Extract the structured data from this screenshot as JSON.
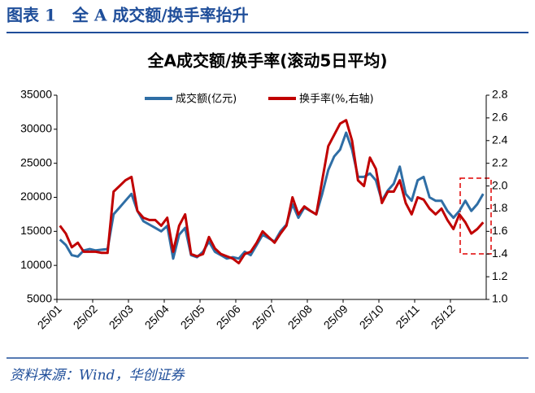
{
  "header": {
    "title": "图表 1　全 A 成交额/换手率抬升"
  },
  "source": "资料来源：Wind，华创证券",
  "chart_data": {
    "type": "line",
    "title": "全A成交额/换手率(滚动5日平均)",
    "categories": [
      "25/01",
      null,
      null,
      null,
      null,
      null,
      "25/02",
      null,
      null,
      null,
      null,
      null,
      "25/03",
      null,
      null,
      null,
      null,
      null,
      "25/04",
      null,
      null,
      null,
      null,
      null,
      "25/05",
      null,
      null,
      null,
      null,
      null,
      "25/06",
      null,
      null,
      null,
      null,
      null,
      "25/07",
      null,
      null,
      null,
      null,
      null,
      "25/08",
      null,
      null,
      null,
      null,
      null,
      "25/09",
      null,
      null,
      null,
      null,
      null,
      "25/10",
      null,
      null,
      null,
      null,
      null,
      "25/11",
      null,
      null,
      null,
      null,
      null,
      "25/12",
      null,
      null,
      null,
      null,
      null
    ],
    "series": [
      {
        "name": "成交额(亿元)",
        "color": "#2f6ea5",
        "values": [
          13800,
          13000,
          11500,
          11300,
          12200,
          12400,
          12200,
          12300,
          12400,
          17500,
          18500,
          19500,
          20500,
          18000,
          16500,
          16000,
          15500,
          15000,
          15800,
          11000,
          14500,
          15500,
          11500,
          11200,
          12000,
          13500,
          12000,
          11500,
          11000,
          11200,
          11000,
          12000,
          11500,
          13000,
          14500,
          14000,
          13500,
          15000,
          16000,
          19000,
          17000,
          18500,
          18000,
          17500,
          20500,
          24000,
          26000,
          27000,
          29500,
          27000,
          23000,
          23000,
          23500,
          22500,
          19500,
          21000,
          22000,
          24500,
          20500,
          19500,
          22500,
          23000,
          20000,
          19500,
          19500,
          18000,
          17000,
          18000,
          19500,
          18000,
          19000,
          20500
        ]
      },
      {
        "name": "换手率(%,右轴)",
        "color": "#c00000",
        "axis": "y2",
        "values": [
          1.65,
          1.58,
          1.46,
          1.5,
          1.42,
          1.42,
          1.42,
          1.41,
          1.41,
          1.95,
          2.0,
          2.05,
          2.08,
          1.78,
          1.72,
          1.7,
          1.7,
          1.65,
          1.72,
          1.42,
          1.65,
          1.75,
          1.4,
          1.38,
          1.4,
          1.55,
          1.45,
          1.4,
          1.38,
          1.36,
          1.32,
          1.4,
          1.42,
          1.5,
          1.6,
          1.55,
          1.5,
          1.58,
          1.65,
          1.9,
          1.75,
          1.82,
          1.78,
          1.75,
          2.05,
          2.35,
          2.45,
          2.55,
          2.58,
          2.4,
          2.05,
          2.0,
          2.25,
          2.15,
          1.85,
          1.95,
          1.95,
          2.05,
          1.85,
          1.75,
          1.9,
          1.88,
          1.8,
          1.75,
          1.8,
          1.7,
          1.62,
          1.75,
          1.68,
          1.58,
          1.62,
          1.68
        ]
      }
    ],
    "ylim": [
      5000,
      35000
    ],
    "yticks": [
      5000,
      10000,
      15000,
      20000,
      25000,
      30000,
      35000
    ],
    "y2lim": [
      1.0,
      2.8
    ],
    "y2ticks": [
      {
        "value": 1.0,
        "label": "1.0"
      },
      1.2,
      1.4,
      1.6,
      1.8,
      {
        "value": 2.0,
        "label": "2.0"
      },
      2.2,
      2.4,
      2.6,
      2.8
    ],
    "legend": "top"
  }
}
